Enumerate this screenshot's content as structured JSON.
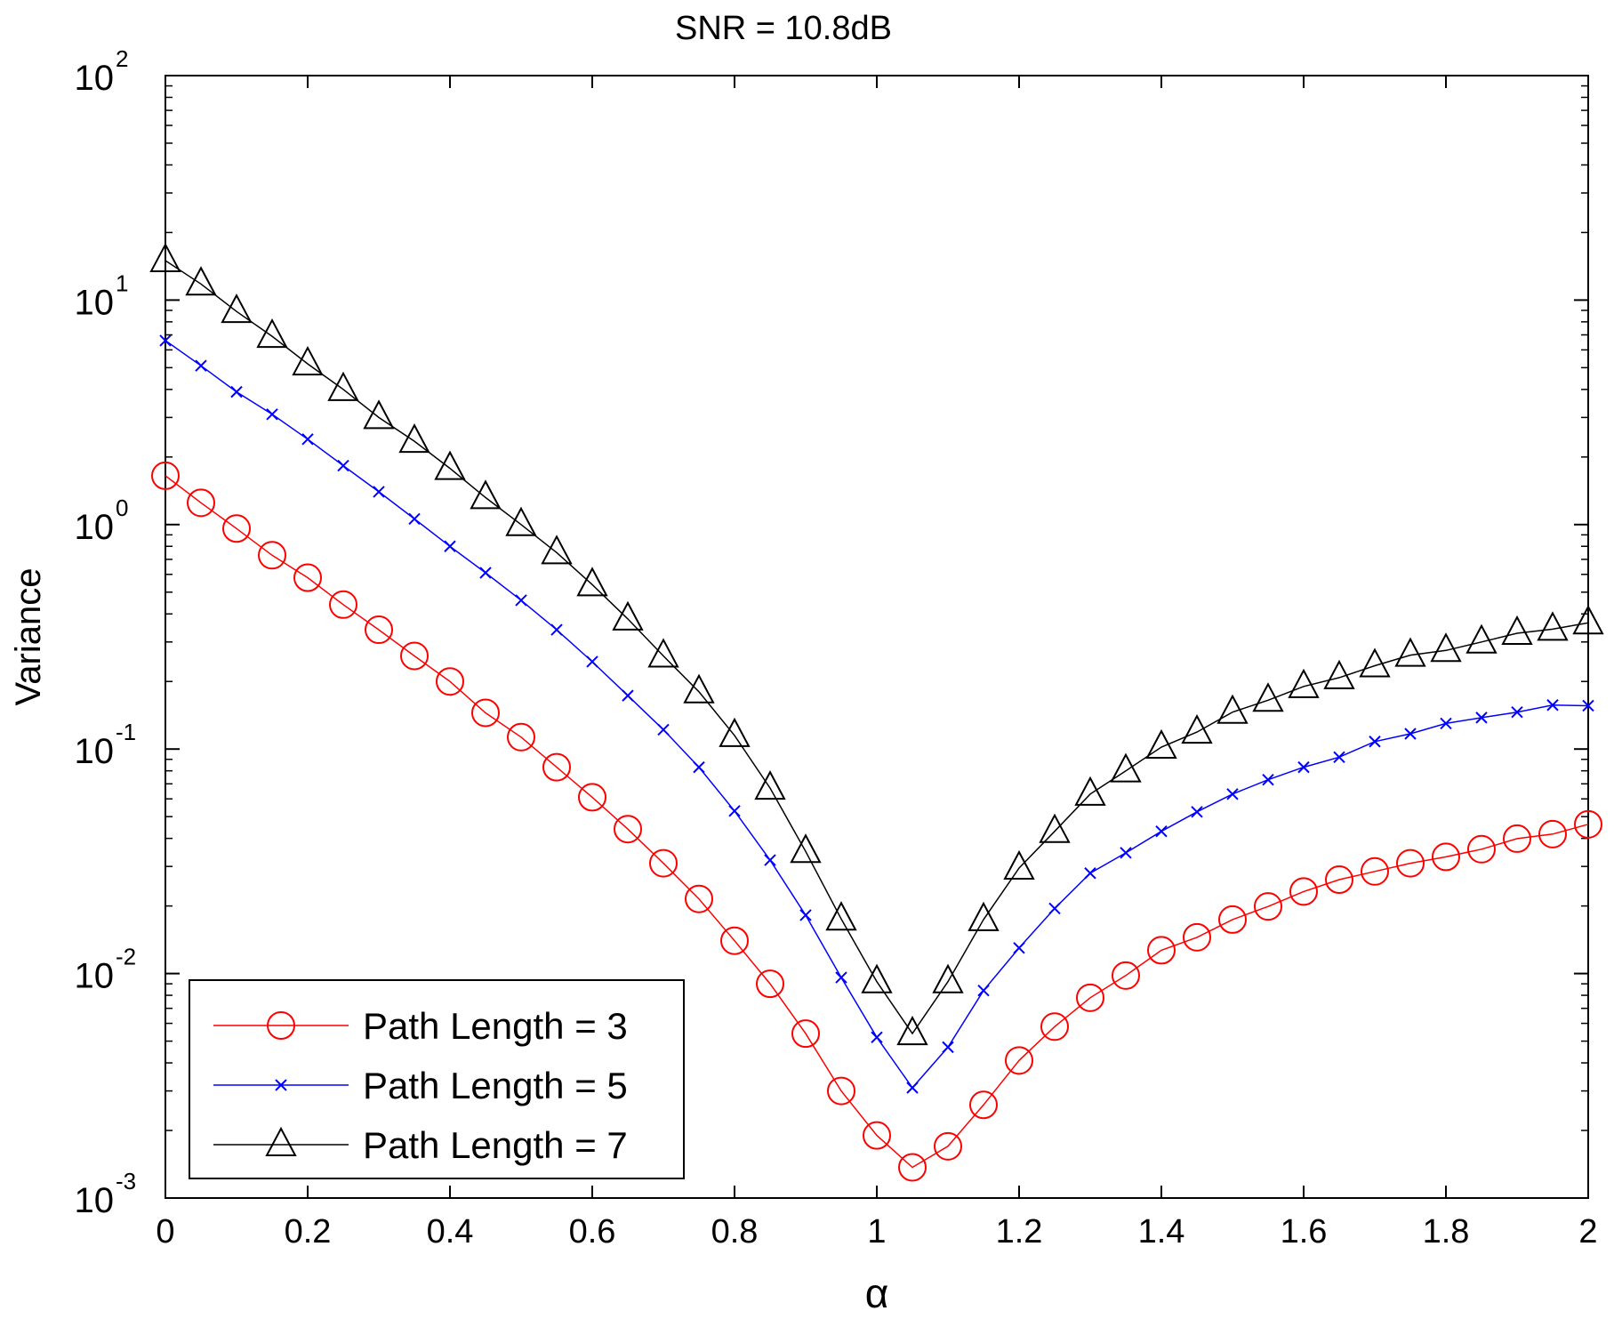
{
  "chart_data": {
    "type": "line",
    "title": "SNR = 10.8dB",
    "xlabel": "α",
    "ylabel": "Variance",
    "xlim": [
      0,
      2
    ],
    "ylim": [
      0.001,
      100
    ],
    "yscale": "log",
    "grid": false,
    "legend_position": "bottom-left",
    "x_ticks": [
      "0",
      "0.2",
      "0.4",
      "0.6",
      "0.8",
      "1",
      "1.2",
      "1.4",
      "1.6",
      "1.8",
      "2"
    ],
    "y_ticks": [
      {
        "base": "10",
        "exp": "-3",
        "value": 0.001
      },
      {
        "base": "10",
        "exp": "-2",
        "value": 0.01
      },
      {
        "base": "10",
        "exp": "-1",
        "value": 0.1
      },
      {
        "base": "10",
        "exp": "0",
        "value": 1
      },
      {
        "base": "10",
        "exp": "1",
        "value": 10
      },
      {
        "base": "10",
        "exp": "2",
        "value": 100
      }
    ],
    "x": [
      0,
      0.05,
      0.1,
      0.15,
      0.2,
      0.25,
      0.3,
      0.35,
      0.4,
      0.45,
      0.5,
      0.55,
      0.6,
      0.65,
      0.7,
      0.75,
      0.8,
      0.85,
      0.9,
      0.95,
      1.0,
      1.05,
      1.1,
      1.15,
      1.2,
      1.25,
      1.3,
      1.35,
      1.4,
      1.45,
      1.5,
      1.55,
      1.6,
      1.65,
      1.7,
      1.75,
      1.8,
      1.85,
      1.9,
      1.95,
      2.0
    ],
    "series": [
      {
        "name": "Path Length = 3",
        "color": "#ff0000",
        "marker": "circle",
        "values": [
          1.65,
          1.25,
          0.96,
          0.73,
          0.58,
          0.44,
          0.34,
          0.26,
          0.2,
          0.145,
          0.113,
          0.083,
          0.061,
          0.044,
          0.031,
          0.0215,
          0.014,
          0.009,
          0.0054,
          0.003,
          0.0019,
          0.00137,
          0.0017,
          0.0026,
          0.0041,
          0.0058,
          0.0078,
          0.0098,
          0.0127,
          0.0145,
          0.0174,
          0.0199,
          0.0232,
          0.0262,
          0.0285,
          0.031,
          0.0331,
          0.0358,
          0.0399,
          0.0418,
          0.0462
        ]
      },
      {
        "name": "Path Length = 5",
        "color": "#0000ff",
        "marker": "x",
        "values": [
          6.6,
          5.1,
          3.9,
          3.1,
          2.4,
          1.83,
          1.4,
          1.06,
          0.8,
          0.61,
          0.46,
          0.34,
          0.245,
          0.173,
          0.122,
          0.083,
          0.053,
          0.032,
          0.0182,
          0.0096,
          0.0052,
          0.0031,
          0.0047,
          0.0084,
          0.013,
          0.0195,
          0.028,
          0.0345,
          0.043,
          0.0525,
          0.063,
          0.073,
          0.083,
          0.092,
          0.108,
          0.117,
          0.13,
          0.138,
          0.146,
          0.157,
          0.156
        ]
      },
      {
        "name": "Path Length = 7",
        "color": "#000000",
        "marker": "triangle",
        "values": [
          15.0,
          11.8,
          8.9,
          6.9,
          5.2,
          4.0,
          3.0,
          2.35,
          1.78,
          1.32,
          1.0,
          0.75,
          0.54,
          0.38,
          0.26,
          0.18,
          0.115,
          0.067,
          0.035,
          0.0175,
          0.0092,
          0.0054,
          0.0092,
          0.0174,
          0.0295,
          0.043,
          0.063,
          0.08,
          0.102,
          0.119,
          0.146,
          0.165,
          0.19,
          0.208,
          0.235,
          0.262,
          0.275,
          0.3,
          0.328,
          0.342,
          0.365
        ]
      }
    ]
  }
}
